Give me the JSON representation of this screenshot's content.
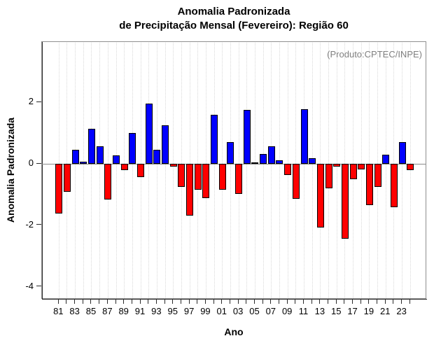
{
  "figure": {
    "title_line1": "Anomalia Padronizada",
    "title_line2": "de Precipitação Mensal (Fevereiro): Região 60",
    "ylabel": "Anomalia Padronizada",
    "xlabel": "Ano",
    "annotation": "(Produto:CPTEC/INPE)"
  },
  "chart_data": {
    "type": "bar",
    "title": "Anomalia Padronizada de Precipitação Mensal (Fevereiro): Região 60",
    "xlabel": "Ano",
    "ylabel": "Anomalia Padronizada",
    "annotation": "(Produto:CPTEC/INPE)",
    "ylim": [
      -4.42,
      3.97
    ],
    "y_tick_values": [
      2,
      0,
      -2,
      -4
    ],
    "y_tick_labels": [
      "2",
      "0",
      "-2",
      "-4"
    ],
    "x_tick_labels": [
      "81",
      "83",
      "85",
      "87",
      "89",
      "91",
      "93",
      "95",
      "97",
      "99",
      "01",
      "03",
      "05",
      "07",
      "09",
      "11",
      "13",
      "15",
      "17",
      "19",
      "21",
      "23"
    ],
    "grid": "vertical-dotted-per-year",
    "legend": "none",
    "colors": {
      "positive": "#0000ff",
      "negative": "#ff0000",
      "bar_border": "#000000",
      "zero_line": "#8a8a8a",
      "gridline": "#d8d8d8",
      "annotation_text": "#808080",
      "box_border": "#8f8f8f"
    },
    "years": [
      1981,
      1982,
      1983,
      1984,
      1985,
      1986,
      1987,
      1988,
      1989,
      1990,
      1991,
      1992,
      1993,
      1994,
      1995,
      1996,
      1997,
      1998,
      1999,
      2000,
      2001,
      2002,
      2003,
      2004,
      2005,
      2006,
      2007,
      2008,
      2009,
      2010,
      2011,
      2012,
      2013,
      2014,
      2015,
      2016,
      2017,
      2018,
      2019,
      2020,
      2021,
      2022,
      2023,
      2024
    ],
    "values": [
      -1.62,
      -0.91,
      0.46,
      0.07,
      1.14,
      0.57,
      -1.16,
      0.27,
      -0.21,
      1.0,
      -0.42,
      1.97,
      0.47,
      1.26,
      -0.08,
      -0.74,
      -1.69,
      -0.84,
      -1.12,
      1.6,
      -0.85,
      0.71,
      -0.97,
      1.75,
      0.05,
      0.33,
      0.57,
      0.11,
      -0.36,
      -1.14,
      1.79,
      0.18,
      -2.08,
      -0.79,
      -0.08,
      -2.43,
      -0.5,
      -0.17,
      -1.35,
      -0.76,
      0.29,
      -1.4,
      0.71,
      -0.21
    ]
  }
}
